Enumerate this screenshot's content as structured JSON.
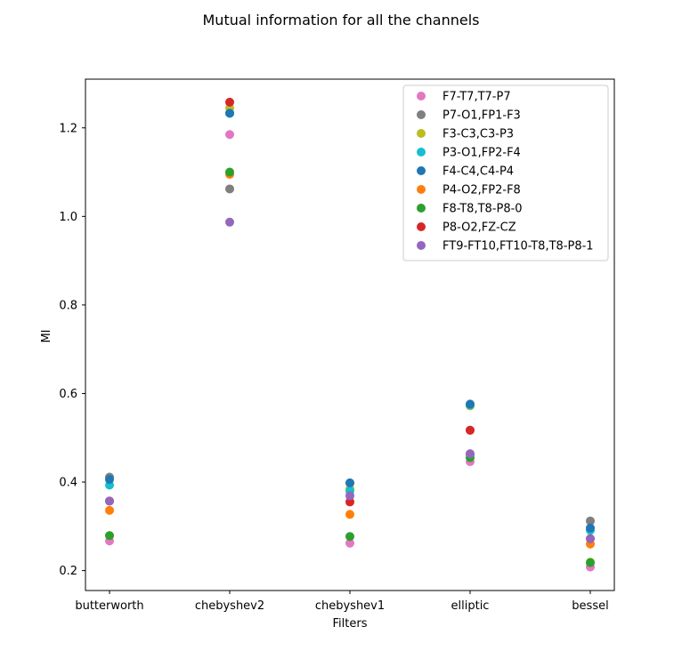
{
  "chart_data": {
    "type": "scatter",
    "title": "Mutual information for all the channels",
    "xlabel": "Filters",
    "ylabel": "MI",
    "categories": [
      "butterworth",
      "chebyshev2",
      "chebyshev1",
      "elliptic",
      "bessel"
    ],
    "ylim": [
      0.155,
      1.31
    ],
    "yticks": [
      "0.2",
      "0.4",
      "0.6",
      "0.8",
      "1.0",
      "1.2"
    ],
    "legend_position": "top-right",
    "grid": false,
    "series": [
      {
        "name": "F7-T7,T7-P7",
        "color": "#e377c2",
        "values": [
          0.267,
          1.185,
          0.262,
          0.446,
          0.208
        ]
      },
      {
        "name": "P7-O1,FP1-F3",
        "color": "#7f7f7f",
        "values": [
          0.411,
          1.062,
          0.398,
          0.462,
          0.312
        ]
      },
      {
        "name": "F3-C3,C3-P3",
        "color": "#bcbd22",
        "values": [
          0.279,
          1.245,
          0.385,
          0.572,
          0.219
        ]
      },
      {
        "name": "P3-O1,FP2-F4",
        "color": "#17becf",
        "values": [
          0.393,
          1.233,
          0.38,
          0.574,
          0.291
        ]
      },
      {
        "name": "F4-C4,C4-P4",
        "color": "#1f77b4",
        "values": [
          0.406,
          1.233,
          0.398,
          0.576,
          0.296
        ]
      },
      {
        "name": "P4-O2,FP2-F8",
        "color": "#ff7f0e",
        "values": [
          0.336,
          1.095,
          0.327,
          0.517,
          0.26
        ]
      },
      {
        "name": "F8-T8,T8-P8-0",
        "color": "#2ca02c",
        "values": [
          0.279,
          1.1,
          0.277,
          0.455,
          0.218
        ]
      },
      {
        "name": "P8-O2,FZ-CZ",
        "color": "#d62728",
        "values": [
          0.357,
          1.258,
          0.355,
          0.517,
          0.272
        ]
      },
      {
        "name": "FT9-FT10,FT10-T8,T8-P8-1",
        "color": "#9467bd",
        "values": [
          0.357,
          0.987,
          0.369,
          0.464,
          0.272
        ]
      }
    ]
  }
}
